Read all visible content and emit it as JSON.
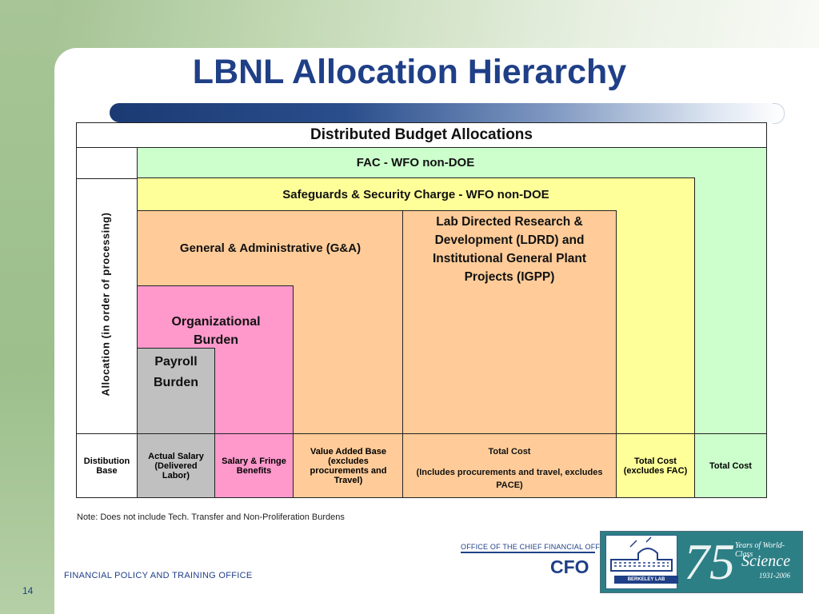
{
  "slide": {
    "title": "LBNL Allocation Hierarchy",
    "page_number": "14",
    "footer_office": "FINANCIAL POLICY AND TRAINING OFFICE",
    "note": "Note: Does not include Tech. Transfer and Non-Proliferation Burdens"
  },
  "diagram": {
    "header": "Distributed Budget Allocations",
    "axis_label": "Allocation (in order of processing)",
    "layers": {
      "fac": "FAC - WFO non-DOE",
      "safeguards": "Safeguards & Security Charge - WFO non-DOE",
      "ga": "General & Administrative (G&A)",
      "ldrd": "Lab Directed Research & Development (LDRD) and Institutional General Plant Projects (IGPP)",
      "org_burden": "Organizational Burden",
      "payroll_burden": "Payroll Burden"
    },
    "bases": {
      "label": "Distibution Base",
      "actual_salary": "Actual Salary (Delivered Labor)",
      "salary_fringe": "Salary & Fringe Benefits",
      "value_added": "Value Added Base (excludes procurements and Travel)",
      "total_cost_main": "Total Cost",
      "total_cost_sub": "(Includes procurements and travel, excludes PACE)",
      "total_cost_excl_fac": "Total Cost (excludes FAC)",
      "total_cost": "Total Cost"
    },
    "colors": {
      "fac": "#ccffcc",
      "safeguards": "#ffff99",
      "ga": "#ffcc99",
      "org_burden": "#ff99cc",
      "payroll_burden": "#c0c0c0"
    }
  },
  "branding": {
    "cfo_office": "OFFICE OF THE CHIEF FINANCIAL OFFICER",
    "cfo": "CFO",
    "logo_lab": "BERKELEY LAB",
    "logo_number": "75",
    "logo_line1": "Years of World-Class",
    "logo_line2": "Science",
    "logo_line3": "1931-2006"
  }
}
